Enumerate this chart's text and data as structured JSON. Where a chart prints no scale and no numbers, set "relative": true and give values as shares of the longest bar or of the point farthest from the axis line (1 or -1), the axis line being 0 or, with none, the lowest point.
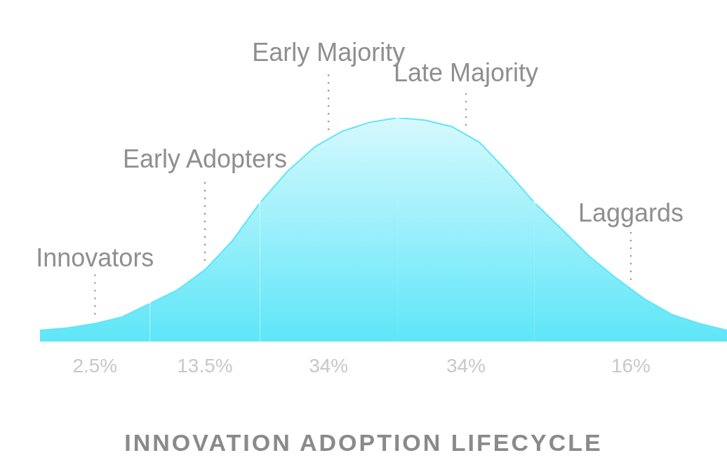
{
  "chart_data": {
    "type": "area",
    "title": "INNOVATION ADOPTION LIFECYCLE",
    "relative": true,
    "categories": [
      null,
      null,
      null,
      null,
      null,
      null,
      null,
      null,
      null,
      null,
      null,
      null,
      null,
      null,
      null,
      null,
      null,
      null,
      null,
      null,
      null,
      null,
      null,
      null,
      null,
      null
    ],
    "series": [
      {
        "name": "Innovators",
        "color": "#5ee6f8",
        "values": [
          0.05,
          0.06,
          0.08,
          0.11,
          0.17,
          null,
          null,
          null,
          null,
          null,
          null,
          null,
          null,
          null,
          null,
          null,
          null,
          null,
          null,
          null,
          null,
          null,
          null,
          null,
          null,
          null
        ]
      },
      {
        "name": "Early Adopters",
        "color": "#5ee6f8",
        "values": [
          null,
          null,
          null,
          null,
          0.17,
          0.23,
          0.32,
          0.45,
          0.62,
          null,
          null,
          null,
          null,
          null,
          null,
          null,
          null,
          null,
          null,
          null,
          null,
          null,
          null,
          null,
          null,
          null
        ]
      },
      {
        "name": "Early Majority",
        "color": "#5ee6f8",
        "values": [
          null,
          null,
          null,
          null,
          null,
          null,
          null,
          null,
          0.62,
          0.76,
          0.87,
          0.94,
          0.98,
          1,
          null,
          null,
          null,
          null,
          null,
          null,
          null,
          null,
          null,
          null,
          null,
          null
        ]
      },
      {
        "name": "Late Majority",
        "color": "#5ee6f8",
        "values": [
          null,
          null,
          null,
          null,
          null,
          null,
          null,
          null,
          null,
          null,
          null,
          null,
          null,
          1,
          0.99,
          0.96,
          0.89,
          0.76,
          0.62,
          null,
          null,
          null,
          null,
          null,
          null,
          null
        ]
      },
      {
        "name": "Laggards",
        "color": "#5ee6f8",
        "values": [
          null,
          null,
          null,
          null,
          null,
          null,
          null,
          null,
          null,
          null,
          null,
          null,
          null,
          null,
          null,
          null,
          null,
          null,
          0.62,
          0.5,
          0.38,
          0.28,
          0.19,
          0.12,
          0.08,
          0.05
        ]
      }
    ],
    "annotations": [
      "2.5%",
      "13.5%",
      "34%",
      "34%",
      "16%"
    ]
  }
}
